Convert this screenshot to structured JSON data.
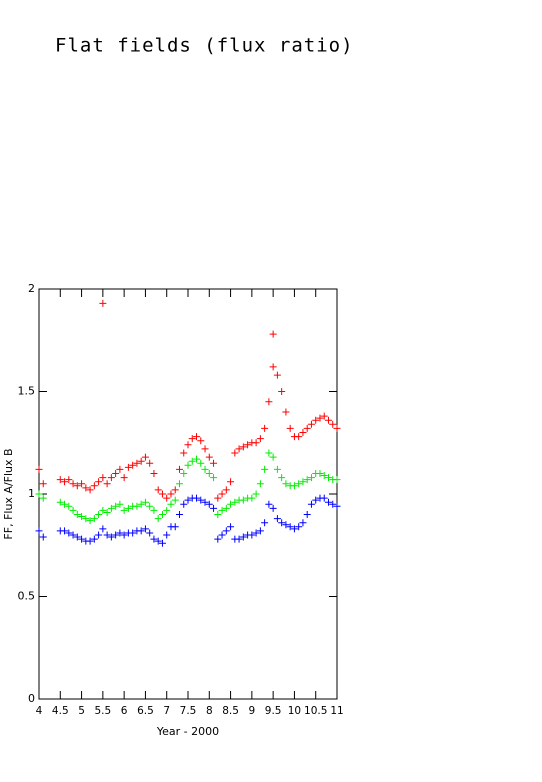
{
  "chart_data": {
    "type": "scatter",
    "title": "Flat fields (flux ratio)",
    "xlabel": "Year - 2000",
    "ylabel": "FF, Flux A/Flux B",
    "xlim": [
      4,
      11
    ],
    "ylim": [
      0,
      2
    ],
    "xticks": [
      4,
      4.5,
      5,
      5.5,
      6,
      6.5,
      7,
      7.5,
      8,
      8.5,
      9,
      9.5,
      10,
      10.5,
      11
    ],
    "yticks": [
      0,
      0.5,
      1,
      1.5,
      2
    ],
    "series": [
      {
        "color": "#ff0000",
        "x": [
          4.0,
          4.1,
          4.5,
          4.6,
          4.7,
          4.8,
          4.9,
          5.0,
          5.1,
          5.2,
          5.3,
          5.4,
          5.5,
          5.6,
          5.7,
          5.8,
          5.9,
          6.0,
          6.1,
          6.2,
          6.3,
          6.4,
          6.5,
          6.6,
          6.7,
          6.8,
          6.9,
          7.0,
          7.1,
          7.2,
          7.3,
          7.4,
          7.5,
          7.6,
          7.7,
          7.8,
          7.9,
          8.0,
          8.1,
          8.2,
          8.3,
          8.4,
          8.5,
          8.6,
          8.7,
          8.8,
          8.9,
          9.0,
          9.1,
          9.2,
          9.3,
          9.4,
          9.5,
          9.6,
          9.7,
          9.8,
          9.9,
          10.0,
          10.1,
          10.2,
          10.3,
          10.4,
          10.5,
          10.6,
          10.7,
          10.8,
          10.9,
          11.0,
          5.5,
          9.5
        ],
        "values": [
          1.12,
          1.05,
          1.07,
          1.06,
          1.07,
          1.05,
          1.04,
          1.05,
          1.03,
          1.02,
          1.04,
          1.06,
          1.08,
          1.05,
          1.08,
          1.1,
          1.12,
          1.08,
          1.13,
          1.14,
          1.15,
          1.16,
          1.18,
          1.15,
          1.1,
          1.02,
          1.0,
          0.98,
          1.0,
          1.02,
          1.12,
          1.2,
          1.24,
          1.27,
          1.28,
          1.26,
          1.22,
          1.18,
          1.15,
          0.98,
          1.0,
          1.02,
          1.06,
          1.2,
          1.22,
          1.23,
          1.24,
          1.25,
          1.25,
          1.27,
          1.32,
          1.45,
          1.62,
          1.58,
          1.5,
          1.4,
          1.32,
          1.28,
          1.28,
          1.3,
          1.32,
          1.34,
          1.36,
          1.37,
          1.38,
          1.36,
          1.34,
          1.32,
          1.93,
          1.78
        ]
      },
      {
        "color": "#00ee00",
        "x": [
          4.0,
          4.1,
          4.5,
          4.6,
          4.7,
          4.8,
          4.9,
          5.0,
          5.1,
          5.2,
          5.3,
          5.4,
          5.5,
          5.6,
          5.7,
          5.8,
          5.9,
          6.0,
          6.1,
          6.2,
          6.3,
          6.4,
          6.5,
          6.6,
          6.7,
          6.8,
          6.9,
          7.0,
          7.1,
          7.2,
          7.3,
          7.4,
          7.5,
          7.6,
          7.7,
          7.8,
          7.9,
          8.0,
          8.1,
          8.2,
          8.3,
          8.4,
          8.5,
          8.6,
          8.7,
          8.8,
          8.9,
          9.0,
          9.1,
          9.2,
          9.3,
          9.4,
          9.5,
          9.6,
          9.7,
          9.8,
          9.9,
          10.0,
          10.1,
          10.2,
          10.3,
          10.4,
          10.5,
          10.6,
          10.7,
          10.8,
          10.9,
          11.0
        ],
        "values": [
          1.0,
          0.98,
          0.96,
          0.95,
          0.94,
          0.92,
          0.9,
          0.89,
          0.88,
          0.87,
          0.88,
          0.9,
          0.92,
          0.91,
          0.93,
          0.94,
          0.95,
          0.92,
          0.93,
          0.94,
          0.94,
          0.95,
          0.96,
          0.94,
          0.92,
          0.88,
          0.9,
          0.92,
          0.95,
          0.97,
          1.05,
          1.1,
          1.14,
          1.16,
          1.17,
          1.15,
          1.12,
          1.1,
          1.08,
          0.9,
          0.92,
          0.93,
          0.95,
          0.96,
          0.97,
          0.97,
          0.98,
          0.98,
          1.0,
          1.05,
          1.12,
          1.2,
          1.18,
          1.12,
          1.08,
          1.05,
          1.04,
          1.04,
          1.05,
          1.06,
          1.07,
          1.08,
          1.1,
          1.1,
          1.09,
          1.08,
          1.07,
          1.07
        ]
      },
      {
        "color": "#0000ff",
        "x": [
          4.0,
          4.1,
          4.5,
          4.6,
          4.7,
          4.8,
          4.9,
          5.0,
          5.1,
          5.2,
          5.3,
          5.4,
          5.5,
          5.6,
          5.7,
          5.8,
          5.9,
          6.0,
          6.1,
          6.2,
          6.3,
          6.4,
          6.5,
          6.6,
          6.7,
          6.8,
          6.9,
          7.0,
          7.1,
          7.2,
          7.3,
          7.4,
          7.5,
          7.6,
          7.7,
          7.8,
          7.9,
          8.0,
          8.1,
          8.2,
          8.3,
          8.4,
          8.5,
          8.6,
          8.7,
          8.8,
          8.9,
          9.0,
          9.1,
          9.2,
          9.3,
          9.4,
          9.5,
          9.6,
          9.7,
          9.8,
          9.9,
          10.0,
          10.1,
          10.2,
          10.3,
          10.4,
          10.5,
          10.6,
          10.7,
          10.8,
          10.9,
          11.0
        ],
        "values": [
          0.82,
          0.79,
          0.82,
          0.82,
          0.81,
          0.8,
          0.79,
          0.78,
          0.77,
          0.77,
          0.78,
          0.8,
          0.83,
          0.8,
          0.79,
          0.8,
          0.81,
          0.8,
          0.81,
          0.81,
          0.82,
          0.82,
          0.83,
          0.81,
          0.78,
          0.77,
          0.76,
          0.8,
          0.84,
          0.84,
          0.9,
          0.95,
          0.97,
          0.98,
          0.98,
          0.97,
          0.96,
          0.95,
          0.93,
          0.78,
          0.8,
          0.82,
          0.84,
          0.78,
          0.78,
          0.79,
          0.8,
          0.8,
          0.81,
          0.82,
          0.86,
          0.95,
          0.93,
          0.88,
          0.86,
          0.85,
          0.84,
          0.83,
          0.84,
          0.86,
          0.9,
          0.95,
          0.97,
          0.98,
          0.98,
          0.96,
          0.95,
          0.94
        ]
      }
    ]
  }
}
